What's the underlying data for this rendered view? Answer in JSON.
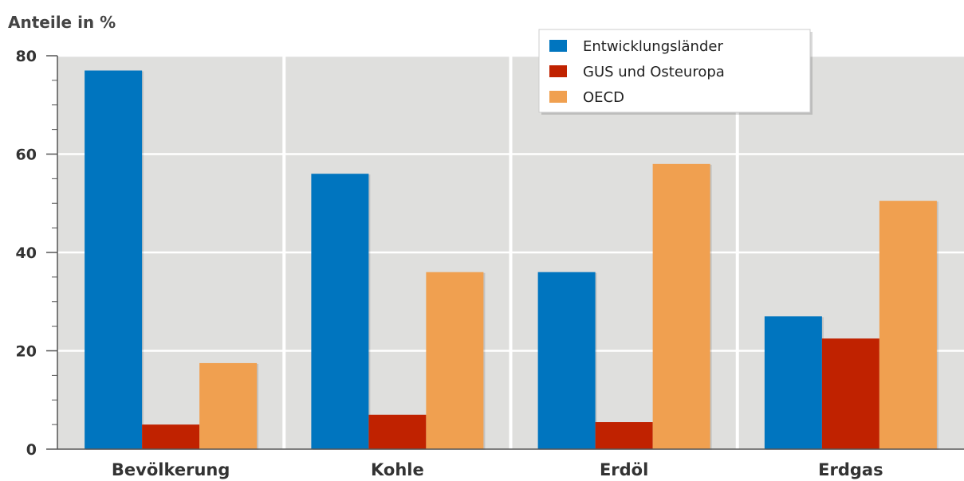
{
  "chart_data": {
    "type": "bar",
    "ylabel": "Anteile in %",
    "xlabel": "",
    "ylim": [
      0,
      80
    ],
    "yticks": [
      0,
      20,
      40,
      60,
      80
    ],
    "grid": true,
    "legend_position": "top-right",
    "categories": [
      "Bevölkerung",
      "Kohle",
      "Erdöl",
      "Erdgas"
    ],
    "series": [
      {
        "name": "Entwicklungsländer",
        "color": "#0075BF",
        "values": [
          77,
          56,
          36,
          27
        ]
      },
      {
        "name": "GUS und Osteuropa",
        "color": "#C02200",
        "values": [
          5,
          7,
          5.5,
          22.5
        ]
      },
      {
        "name": "OECD",
        "color": "#F0A050",
        "values": [
          17.5,
          36,
          58,
          50.5
        ]
      }
    ]
  }
}
